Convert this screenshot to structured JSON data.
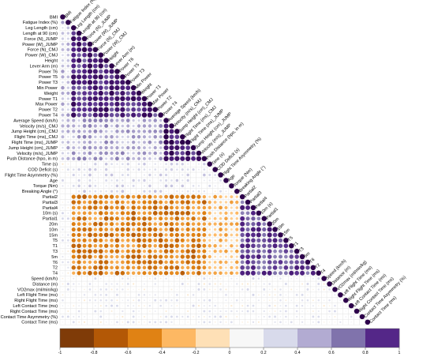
{
  "chart_data": {
    "type": "heatmap",
    "subtype": "lower-triangular correlation matrix (circle size and color encode correlation)",
    "variables": [
      "BMI",
      "Fatigue Index (%)",
      "Leg Length (cm)",
      "Length at 90 (cm)",
      "Force (N)_JUMP",
      "Power (W)_JUMP",
      "Force (N)_CMJ",
      "Power (W)_CMJ",
      "Height",
      "Lever Arm (m)",
      "Power T6",
      "Power T5",
      "Power T3",
      "Min Power",
      "Weight",
      "Power T1",
      "Max Power",
      "Power T2",
      "Power T4",
      "Average Speed (km/h)",
      "Velocity (m/s)_CMJ",
      "Jump Height (cm)_CMJ",
      "Flight Time (ms)_CMJ",
      "Flight Time (ms)_JUMP",
      "Jump Height (cm)_JUMP",
      "Velocity (m/s)_JUMP",
      "Push Distance (hpo, in m)",
      "Time (s)",
      "COD Deficit (s)",
      "Flight Time Asymmetry (%)",
      "Age",
      "Torque (Nm)",
      "Breaking Angle (°)",
      "Partial2",
      "Partial3",
      "Partial4",
      "10m (s)",
      "Partial1",
      "20m",
      "10m",
      "15m",
      "T5",
      "T1",
      "T3",
      "5m",
      "T6",
      "T2",
      "T4",
      "Speed (km/h)",
      "Distance (m)",
      "VO2max (ml/min/kg)",
      "Left Flight Time (ms)",
      "Right Flight Time (ms)",
      "Left Contact Time (ms)",
      "Right Contact Time (ms)",
      "Contact Time Asymmetry (%)",
      "Contact Time (ms)"
    ],
    "color_scale": {
      "min": -1,
      "max": 1,
      "tick_labels": [
        "-1",
        "-0.8",
        "-0.6",
        "-0.4",
        "-0.2",
        "0",
        "0.2",
        "0.4",
        "0.6",
        "0.8",
        "1"
      ],
      "colors": [
        "#7f3b08",
        "#b35806",
        "#e08214",
        "#fdb863",
        "#fee0b6",
        "#f7f7f7",
        "#d8daeb",
        "#b2abd2",
        "#8073ac",
        "#542788",
        "#2d004b"
      ]
    },
    "diagonal_value": 1,
    "group_correlations_approx": {
      "power_strength_block_with_anthropometrics": 0.4,
      "within_power_block": 0.8,
      "jump_block_internal": 0.85,
      "sprint_times_with_jump_and_power": -0.6,
      "within_sprint_times": 0.7,
      "aerobic_and_contact_with_others": 0.05
    },
    "legend_position": "bottom",
    "grid": true
  }
}
